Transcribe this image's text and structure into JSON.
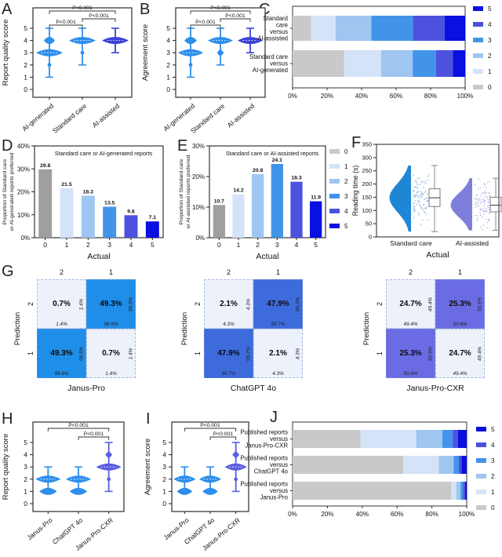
{
  "panels": {
    "A": {
      "letter": "A"
    },
    "B": {
      "letter": "B"
    },
    "C": {
      "letter": "C"
    },
    "D": {
      "letter": "D"
    },
    "E": {
      "letter": "E"
    },
    "F": {
      "letter": "F"
    },
    "G": {
      "letter": "G"
    },
    "H": {
      "letter": "H"
    },
    "I": {
      "letter": "I"
    },
    "J": {
      "letter": "J"
    }
  },
  "colors": {
    "matrix_light": "#edf1fa",
    "palette_stacked": [
      "#c9c9c9",
      "#d4e3f7",
      "#9fc6f0",
      "#4294e9",
      "#4d52de",
      "#0a10e0"
    ],
    "palette_bars": [
      "#9f9f9f",
      "#d4e3f7",
      "#9fc6f0",
      "#4294e9",
      "#4d52de",
      "#0a10e0"
    ],
    "violin_blue": "#2e8eec",
    "violin_royal": "#3a41d8",
    "violin_purple": "#5c5ee0"
  },
  "chart_data": [
    {
      "id": "A",
      "el": "chartA",
      "type": "violin",
      "ylabel": "Report quality score",
      "categories": [
        "AI-generated",
        "Standard care",
        "AI-assisted"
      ],
      "ylim": [
        0,
        5
      ],
      "yticks": [
        0,
        1,
        2,
        3,
        4,
        5
      ],
      "violins": [
        {
          "color": "#2e8eec",
          "min": 1,
          "max": 5,
          "bulges": [
            {
              "y": 3,
              "w": 1
            },
            {
              "y": 4,
              "w": 0.42
            }
          ],
          "diamonds": [
            4
          ],
          "dots": [
            2
          ]
        },
        {
          "color": "#2e8eec",
          "min": 2,
          "max": 5,
          "bulges": [
            {
              "y": 4,
              "w": 1
            }
          ],
          "diamonds": [],
          "dots": [
            3
          ]
        },
        {
          "color": "#3a41d8",
          "min": 3,
          "max": 5,
          "bulges": [
            {
              "y": 4,
              "w": 1
            }
          ],
          "diamonds": [],
          "dots": []
        }
      ],
      "pvalues": [
        {
          "a": 0,
          "b": 2,
          "row": 0,
          "label": "P<0.001"
        },
        {
          "a": 0,
          "b": 1,
          "row": 1,
          "label": "P<0.001"
        },
        {
          "a": 1,
          "b": 2,
          "row": 2,
          "label": "P<0.001"
        }
      ]
    },
    {
      "id": "B",
      "el": "chartB",
      "type": "violin",
      "ylabel": "Agreement score",
      "categories": [
        "AI-generated",
        "Standard care",
        "AI-assisted"
      ],
      "ylim": [
        0,
        5
      ],
      "yticks": [
        0,
        1,
        2,
        3,
        4,
        5
      ],
      "violins": [
        {
          "color": "#2e8eec",
          "min": 1,
          "max": 5,
          "bulges": [
            {
              "y": 3,
              "w": 1
            },
            {
              "y": 4,
              "w": 0.5
            }
          ],
          "diamonds": [
            4
          ],
          "dots": [
            2
          ]
        },
        {
          "color": "#2e8eec",
          "min": 2,
          "max": 5,
          "bulges": [
            {
              "y": 4,
              "w": 1
            }
          ],
          "diamonds": [
            3
          ],
          "dots": []
        },
        {
          "color": "#3a41d8",
          "min": 3,
          "max": 5,
          "bulges": [
            {
              "y": 4,
              "w": 1
            }
          ],
          "diamonds": [],
          "dots": []
        }
      ],
      "pvalues": [
        {
          "a": 0,
          "b": 2,
          "row": 0,
          "label": "P<0.001"
        },
        {
          "a": 0,
          "b": 1,
          "row": 1,
          "label": "P<0.001"
        },
        {
          "a": 1,
          "b": 2,
          "row": 2,
          "label": "P<0.001"
        }
      ]
    },
    {
      "id": "C",
      "el": "chartC",
      "type": "stacked",
      "rows": [
        {
          "label_lines": [
            "Standard",
            "care",
            "versus",
            "AI-assisted"
          ],
          "values": [
            10.7,
            14.2,
            20.8,
            24.1,
            18.3,
            11.9
          ]
        },
        {
          "label_lines": [
            "Standard care",
            "versus",
            "AI-generated"
          ],
          "values": [
            29.8,
            21.5,
            18.3,
            13.5,
            9.8,
            7.1
          ]
        }
      ],
      "xticks": [
        "0%",
        "20%",
        "40%",
        "60%",
        "80%",
        "100%"
      ],
      "legend": [
        "5",
        "4",
        "3",
        "2",
        "1",
        "0"
      ]
    },
    {
      "id": "D",
      "el": "chartD",
      "type": "bars",
      "title": "Standard care or AI-generated reports",
      "ylabel_lines": [
        "Proportion of Standard care",
        "or AI-generated reports preferred"
      ],
      "xlabel": "Actual",
      "categories": [
        "0",
        "1",
        "2",
        "3",
        "4",
        "5"
      ],
      "values": [
        29.8,
        21.5,
        18.3,
        13.5,
        9.8,
        7.1
      ],
      "ymax": 40,
      "yticks": [
        0,
        10,
        20,
        30,
        40
      ]
    },
    {
      "id": "E",
      "el": "chartE",
      "type": "bars",
      "title": "Standard care or AI-assisted reports",
      "ylabel_lines": [
        "Proportion of Standard care",
        "or AI-assisted reports preferred"
      ],
      "xlabel": "Actual",
      "categories": [
        "0",
        "1",
        "2",
        "3",
        "4",
        "5"
      ],
      "values": [
        10.7,
        14.2,
        20.8,
        24.1,
        18.3,
        11.9
      ],
      "ymax": 30,
      "yticks": [
        0,
        10,
        20,
        30
      ]
    },
    {
      "id": "LDE",
      "el": "legendDE",
      "type": "legend",
      "labels": [
        "0",
        "1",
        "2",
        "3",
        "4",
        "5"
      ]
    },
    {
      "id": "F",
      "el": "chartF",
      "type": "raincloud",
      "ylabel": "Reading time (s)",
      "xlabel": "Actual",
      "ylim": [
        0,
        350
      ],
      "yticks": [
        0,
        50,
        100,
        150,
        200,
        250,
        300,
        350
      ],
      "groups": [
        {
          "label": "Standard care",
          "violin_color": "#1f86d6",
          "dot_color": "#6f9fe0",
          "box": {
            "lo": 20,
            "q1": 115,
            "median": 148,
            "q3": 182,
            "hi": 270
          }
        },
        {
          "label": "AI-assisted",
          "violin_color": "#7e7edb",
          "dot_color": "#a0a0e8",
          "box": {
            "lo": 25,
            "q1": 95,
            "median": 120,
            "q3": 150,
            "hi": 222
          }
        }
      ]
    },
    {
      "id": "G1",
      "el": "matrixG1",
      "type": "matrix",
      "title": "Janus-Pro",
      "ylabel": "Prediction",
      "col_labels": [
        "2",
        "1"
      ],
      "row_labels": [
        "2",
        "1"
      ],
      "hl_color": "#1f8ee8",
      "cells": [
        [
          {
            "main": "0.7%",
            "side": "1.4%",
            "bottom": "1.4%",
            "hl": false
          },
          {
            "main": "49.3%",
            "side": "98.6%",
            "bottom": "98.6%",
            "hl": true
          }
        ],
        [
          {
            "main": "49.3%",
            "side": "98.6%",
            "bottom": "98.6%",
            "hl": true
          },
          {
            "main": "0.7%",
            "side": "1.4%",
            "bottom": "1.4%",
            "hl": false
          }
        ]
      ]
    },
    {
      "id": "G2",
      "el": "matrixG2",
      "type": "matrix",
      "title": "ChatGPT 4o",
      "ylabel": "Prediction",
      "col_labels": [
        "2",
        "1"
      ],
      "row_labels": [
        "2",
        "1"
      ],
      "hl_color": "#3e6bdc",
      "cells": [
        [
          {
            "main": "2.1%",
            "side": "4.3%",
            "bottom": "4.3%",
            "hl": false
          },
          {
            "main": "47.9%",
            "side": "95.7%",
            "bottom": "95.7%",
            "hl": true
          }
        ],
        [
          {
            "main": "47.9%",
            "side": "95.7%",
            "bottom": "95.7%",
            "hl": true
          },
          {
            "main": "2.1%",
            "side": "4.3%",
            "bottom": "4.3%",
            "hl": false
          }
        ]
      ]
    },
    {
      "id": "G3",
      "el": "matrixG3",
      "type": "matrix",
      "title": "Janus-Pro-CXR",
      "ylabel": "Prediction",
      "col_labels": [
        "2",
        "1"
      ],
      "row_labels": [
        "2",
        "1"
      ],
      "hl_color": "#6b6ce3",
      "cells": [
        [
          {
            "main": "24.7%",
            "side": "49.4%",
            "bottom": "49.4%",
            "hl": false
          },
          {
            "main": "25.3%",
            "side": "50.6%",
            "bottom": "50.6%",
            "hl": true
          }
        ],
        [
          {
            "main": "25.3%",
            "side": "50.6%",
            "bottom": "50.6%",
            "hl": true
          },
          {
            "main": "24.7%",
            "side": "49.4%",
            "bottom": "49.4%",
            "hl": false
          }
        ]
      ]
    },
    {
      "id": "H",
      "el": "chartH",
      "type": "violin",
      "ylabel": "Report quality score",
      "categories": [
        "Janus-Pro",
        "ChatGPT 4o",
        "Janus-Pro-CXR"
      ],
      "ylim": [
        0,
        5
      ],
      "yticks": [
        0,
        1,
        2,
        3,
        4,
        5
      ],
      "violins": [
        {
          "color": "#2e8eec",
          "min": 1,
          "max": 3,
          "bulges": [
            {
              "y": 2,
              "w": 1
            },
            {
              "y": 1,
              "w": 0.7
            }
          ],
          "diamonds": [],
          "dots": []
        },
        {
          "color": "#2e8eec",
          "min": 1,
          "max": 3,
          "bulges": [
            {
              "y": 2,
              "w": 1
            },
            {
              "y": 1,
              "w": 0.7
            }
          ],
          "diamonds": [],
          "dots": []
        },
        {
          "color": "#5c5ee0",
          "min": 1,
          "max": 5,
          "bulges": [
            {
              "y": 3,
              "w": 1
            }
          ],
          "diamonds": [
            4
          ],
          "dots": [
            2
          ]
        }
      ],
      "pvalues": [
        {
          "a": 0,
          "b": 2,
          "row": 0,
          "label": "P<0.001"
        },
        {
          "a": 1,
          "b": 2,
          "row": 1,
          "label": "P<0.001"
        }
      ]
    },
    {
      "id": "I",
      "el": "chartI",
      "type": "violin",
      "ylabel": "Agreement score",
      "categories": [
        "Janus-Pro",
        "ChatGPT 4o",
        "Janus-Pro-CXR"
      ],
      "ylim": [
        0,
        5
      ],
      "yticks": [
        0,
        1,
        2,
        3,
        4,
        5
      ],
      "violins": [
        {
          "color": "#2e8eec",
          "min": 1,
          "max": 3,
          "bulges": [
            {
              "y": 2,
              "w": 1
            },
            {
              "y": 1,
              "w": 0.7
            }
          ],
          "diamonds": [],
          "dots": []
        },
        {
          "color": "#2e8eec",
          "min": 1,
          "max": 3,
          "bulges": [
            {
              "y": 2,
              "w": 1
            },
            {
              "y": 1,
              "w": 0.7
            }
          ],
          "diamonds": [],
          "dots": []
        },
        {
          "color": "#5c5ee0",
          "min": 1,
          "max": 5,
          "bulges": [
            {
              "y": 3,
              "w": 1
            }
          ],
          "diamonds": [
            4
          ],
          "dots": [
            2
          ]
        }
      ],
      "pvalues": [
        {
          "a": 0,
          "b": 2,
          "row": 0,
          "label": "P<0.001"
        },
        {
          "a": 1,
          "b": 2,
          "row": 1,
          "label": "P<0.001"
        }
      ]
    },
    {
      "id": "J",
      "el": "chartJ",
      "type": "stacked",
      "rows": [
        {
          "label_lines": [
            "Published reports",
            "versus",
            "Janus-Pro-CXR"
          ],
          "values": [
            39,
            32,
            15,
            6,
            3,
            5
          ]
        },
        {
          "label_lines": [
            "Published reports",
            "versus",
            "ChatGPT 4o"
          ],
          "values": [
            63.5,
            20.5,
            8.5,
            3,
            1.5,
            3
          ]
        },
        {
          "label_lines": [
            "Published reports",
            "versus",
            "Janus-Pro"
          ],
          "values": [
            91,
            3,
            2.5,
            1.5,
            1,
            1
          ]
        }
      ],
      "xticks": [
        "0%",
        "20%",
        "40%",
        "60%",
        "80%",
        "100%"
      ],
      "legend": [
        "5",
        "4",
        "3",
        "2",
        "1",
        "0"
      ]
    }
  ]
}
